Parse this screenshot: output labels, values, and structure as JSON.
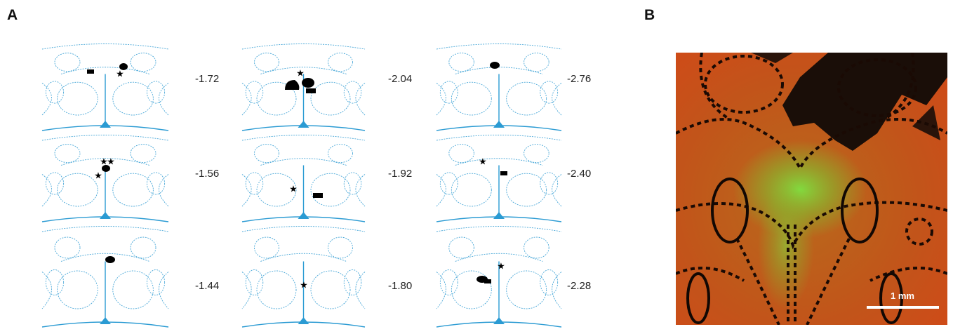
{
  "panels": [
    {
      "label": "A",
      "sections": [
        [
          "-1.72",
          "-1.56",
          "-1.44"
        ],
        [
          "-2.04",
          "-1.92",
          "-1.80"
        ],
        [
          "-2.76",
          "-2.40",
          "-2.28"
        ]
      ]
    },
    {
      "label": "B",
      "scale_bar": "1 mm"
    }
  ]
}
